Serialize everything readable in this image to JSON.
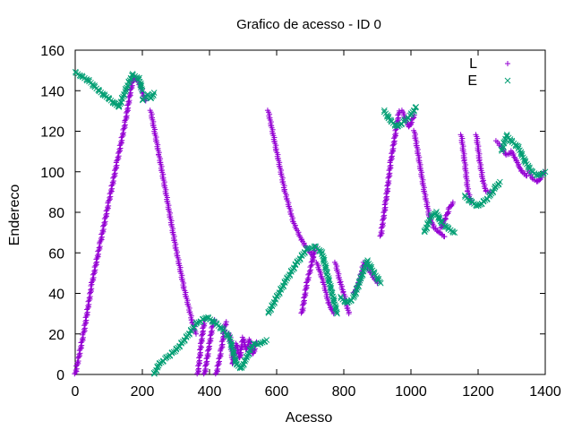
{
  "chart_data": {
    "type": "scatter",
    "title": "Grafico de acesso - ID 0",
    "xlabel": "Acesso",
    "ylabel": "Endereco",
    "xlim": [
      0,
      1400
    ],
    "ylim": [
      0,
      160
    ],
    "xticks": [
      "0",
      "200",
      "400",
      "600",
      "800",
      "1000",
      "1200",
      "1400"
    ],
    "yticks": [
      "0",
      "20",
      "40",
      "60",
      "80",
      "100",
      "120",
      "140",
      "160"
    ],
    "grid": false,
    "legend_position": "top-right",
    "series": [
      {
        "name": "L",
        "color": "#9400d3",
        "marker": "plus",
        "segments": [
          [
            [
              0,
              0
            ],
            [
              25,
              20
            ],
            [
              50,
              45
            ],
            [
              75,
              65
            ],
            [
              100,
              85
            ],
            [
              125,
              105
            ],
            [
              150,
              125
            ],
            [
              165,
              140
            ],
            [
              175,
              147
            ]
          ],
          [
            [
              175,
              147
            ],
            [
              185,
              145
            ],
            [
              195,
              142
            ],
            [
              205,
              137
            ],
            [
              210,
              135
            ]
          ],
          [
            [
              225,
              130
            ],
            [
              250,
              108
            ],
            [
              275,
              85
            ],
            [
              300,
              62
            ],
            [
              325,
              42
            ],
            [
              350,
              25
            ],
            [
              360,
              20
            ]
          ],
          [
            [
              365,
              0
            ],
            [
              375,
              15
            ],
            [
              385,
              27
            ]
          ],
          [
            [
              385,
              0
            ],
            [
              400,
              15
            ],
            [
              410,
              25
            ],
            [
              415,
              27
            ]
          ],
          [
            [
              420,
              0
            ],
            [
              435,
              12
            ],
            [
              445,
              23
            ],
            [
              450,
              26
            ]
          ],
          [
            [
              460,
              20
            ],
            [
              470,
              5
            ],
            [
              480,
              15
            ],
            [
              490,
              8
            ],
            [
              500,
              18
            ],
            [
              510,
              12
            ],
            [
              520,
              17
            ],
            [
              530,
              10
            ],
            [
              540,
              16
            ]
          ],
          [
            [
              575,
              130
            ],
            [
              600,
              110
            ],
            [
              625,
              90
            ],
            [
              650,
              75
            ],
            [
              675,
              66
            ],
            [
              700,
              60
            ],
            [
              710,
              58
            ]
          ],
          [
            [
              675,
              30
            ],
            [
              690,
              45
            ],
            [
              705,
              55
            ],
            [
              715,
              63
            ]
          ],
          [
            [
              720,
              55
            ],
            [
              740,
              45
            ],
            [
              755,
              35
            ],
            [
              770,
              30
            ]
          ],
          [
            [
              775,
              55
            ],
            [
              790,
              45
            ],
            [
              800,
              40
            ],
            [
              815,
              30
            ]
          ],
          [
            [
              830,
              40
            ],
            [
              845,
              45
            ],
            [
              860,
              55
            ],
            [
              880,
              50
            ],
            [
              900,
              45
            ]
          ],
          [
            [
              910,
              68
            ],
            [
              925,
              85
            ],
            [
              940,
              105
            ],
            [
              955,
              120
            ],
            [
              965,
              130
            ]
          ],
          [
            [
              975,
              130
            ],
            [
              985,
              125
            ],
            [
              995,
              122
            ],
            [
              1010,
              128
            ]
          ],
          [
            [
              1010,
              120
            ],
            [
              1025,
              105
            ],
            [
              1040,
              90
            ],
            [
              1055,
              78
            ],
            [
              1070,
              72
            ],
            [
              1085,
              70
            ],
            [
              1100,
              68
            ]
          ],
          [
            [
              1090,
              72
            ],
            [
              1105,
              78
            ],
            [
              1115,
              82
            ],
            [
              1125,
              85
            ]
          ],
          [
            [
              1150,
              118
            ],
            [
              1160,
              105
            ],
            [
              1170,
              90
            ],
            [
              1180,
              85
            ]
          ],
          [
            [
              1195,
              118
            ],
            [
              1205,
              105
            ],
            [
              1215,
              95
            ],
            [
              1225,
              90
            ],
            [
              1240,
              90
            ]
          ],
          [
            [
              1255,
              115
            ],
            [
              1270,
              112
            ],
            [
              1285,
              108
            ],
            [
              1300,
              110
            ],
            [
              1315,
              105
            ],
            [
              1330,
              100
            ],
            [
              1345,
              98
            ]
          ],
          [
            [
              1350,
              100
            ],
            [
              1365,
              96
            ],
            [
              1380,
              95
            ],
            [
              1395,
              100
            ]
          ]
        ]
      },
      {
        "name": "E",
        "color": "#009e73",
        "marker": "cross",
        "segments": [
          [
            [
              0,
              149
            ],
            [
              40,
              145
            ],
            [
              70,
              140
            ],
            [
              100,
              136
            ],
            [
              130,
              132
            ]
          ],
          [
            [
              130,
              132
            ],
            [
              150,
              140
            ],
            [
              170,
              148
            ],
            [
              190,
              146
            ],
            [
              200,
              140
            ]
          ],
          [
            [
              200,
              135
            ],
            [
              215,
              138
            ],
            [
              225,
              136
            ],
            [
              235,
              139
            ]
          ],
          [
            [
              235,
              0
            ],
            [
              250,
              5
            ],
            [
              270,
              8
            ],
            [
              300,
              12
            ],
            [
              330,
              18
            ],
            [
              360,
              25
            ],
            [
              390,
              28
            ]
          ],
          [
            [
              395,
              28
            ],
            [
              420,
              25
            ],
            [
              440,
              22
            ],
            [
              460,
              18
            ],
            [
              480,
              5
            ],
            [
              495,
              3
            ],
            [
              510,
              8
            ],
            [
              530,
              15
            ],
            [
              550,
              15
            ],
            [
              570,
              17
            ]
          ],
          [
            [
              575,
              30
            ],
            [
              600,
              38
            ],
            [
              630,
              47
            ],
            [
              660,
              55
            ],
            [
              690,
              62
            ],
            [
              715,
              63
            ],
            [
              735,
              60
            ],
            [
              750,
              50
            ],
            [
              765,
              40
            ],
            [
              780,
              30
            ]
          ],
          [
            [
              790,
              38
            ],
            [
              810,
              35
            ],
            [
              830,
              38
            ],
            [
              850,
              47
            ],
            [
              870,
              56
            ],
            [
              890,
              50
            ],
            [
              910,
              45
            ]
          ],
          [
            [
              920,
              130
            ],
            [
              940,
              125
            ],
            [
              960,
              122
            ],
            [
              980,
              125
            ],
            [
              1000,
              128
            ],
            [
              1015,
              132
            ]
          ],
          [
            [
              1040,
              70
            ],
            [
              1060,
              78
            ],
            [
              1075,
              80
            ],
            [
              1090,
              75
            ],
            [
              1110,
              72
            ],
            [
              1130,
              70
            ]
          ],
          [
            [
              1160,
              88
            ],
            [
              1180,
              85
            ],
            [
              1200,
              83
            ],
            [
              1215,
              85
            ],
            [
              1235,
              88
            ],
            [
              1250,
              92
            ],
            [
              1265,
              95
            ]
          ],
          [
            [
              1270,
              110
            ],
            [
              1285,
              118
            ],
            [
              1300,
              115
            ],
            [
              1320,
              112
            ],
            [
              1340,
              105
            ],
            [
              1360,
              100
            ],
            [
              1380,
              98
            ],
            [
              1400,
              100
            ]
          ]
        ]
      }
    ]
  }
}
